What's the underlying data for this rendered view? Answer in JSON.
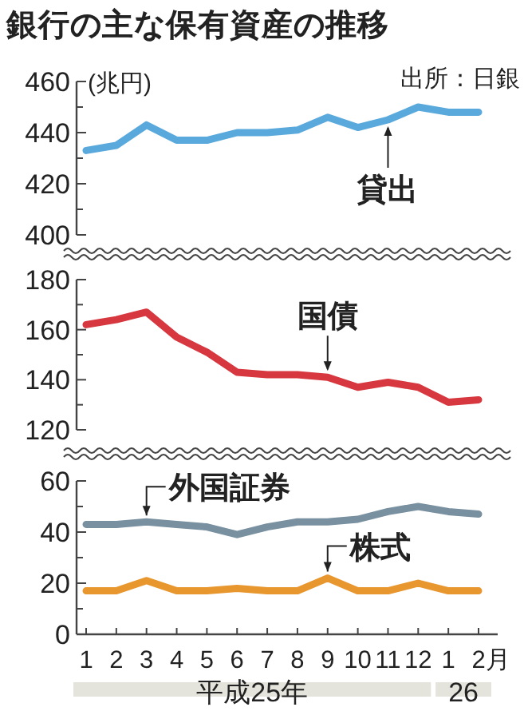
{
  "chart_data": [
    {
      "type": "line",
      "title": "銀行の主な保有資産の推移",
      "ylabel": "(兆円)",
      "annotations": [
        "出所：日銀"
      ],
      "categories": [
        null,
        null,
        null,
        null,
        null,
        null,
        null,
        null,
        null,
        null,
        null,
        null,
        null,
        null
      ],
      "series": [
        {
          "name": "貸出",
          "color": "#5aa9dc",
          "values": [
            433,
            435,
            443,
            437,
            437,
            440,
            440,
            441,
            446,
            442,
            445,
            450,
            448,
            448
          ]
        }
      ],
      "ylim": [
        400,
        460
      ],
      "yticks": [
        400,
        {
          "value": 410,
          "label": null
        },
        420,
        {
          "value": 430,
          "label": null
        },
        440,
        {
          "value": 450,
          "label": null
        },
        460
      ],
      "tick_labels": "y"
    },
    {
      "type": "line",
      "categories": [
        null,
        null,
        null,
        null,
        null,
        null,
        null,
        null,
        null,
        null,
        null,
        null,
        null,
        null
      ],
      "series": [
        {
          "name": "国債",
          "color": "#d7373f",
          "values": [
            162,
            164,
            167,
            157,
            151,
            143,
            142,
            142,
            141,
            137,
            139,
            137,
            131,
            132
          ]
        }
      ],
      "ylim": [
        120,
        180
      ],
      "yticks": [
        120,
        {
          "value": 130,
          "label": null
        },
        140,
        {
          "value": 150,
          "label": null
        },
        160,
        {
          "value": 170,
          "label": null
        },
        180
      ],
      "tick_labels": "y"
    },
    {
      "type": "line",
      "annotations": [
        "平成25年",
        "26"
      ],
      "categories": [
        "1",
        "2",
        "3",
        "4",
        "5",
        "6",
        "7",
        "8",
        "9",
        "10",
        "11",
        "12",
        "1",
        "2月"
      ],
      "series": [
        {
          "name": "外国証券",
          "color": "#7890a0",
          "values": [
            43,
            43,
            44,
            43,
            42,
            39,
            42,
            44,
            44,
            45,
            48,
            50,
            48,
            47
          ]
        },
        {
          "name": "株式",
          "color": "#e8962e",
          "values": [
            17,
            17,
            21,
            17,
            17,
            18,
            17,
            17,
            22,
            17,
            17,
            20,
            17,
            17
          ]
        }
      ],
      "ylim": [
        0,
        60
      ],
      "yticks": [
        0,
        {
          "value": 10,
          "label": null
        },
        20,
        {
          "value": 30,
          "label": null
        },
        40,
        {
          "value": 50,
          "label": null
        },
        60
      ]
    }
  ]
}
